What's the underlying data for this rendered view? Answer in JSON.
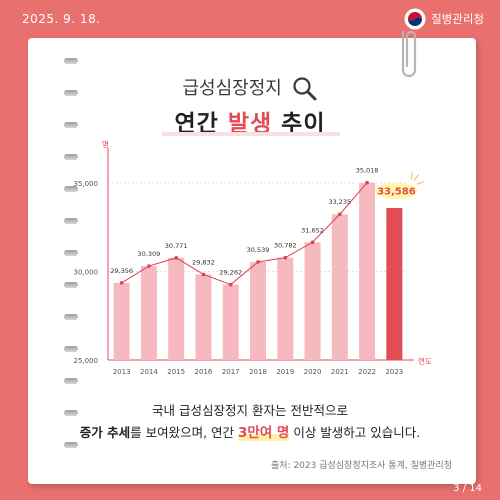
{
  "header": {
    "date": "2025. 9. 18.",
    "agency": "질병관리청",
    "page": "3 / 14"
  },
  "title": {
    "line1": "급성심장정지",
    "line2_part1": "연간 ",
    "line2_highlight": "발생",
    "line2_part2": " 추이"
  },
  "description": {
    "line1": "국내 급성심장정지 환자는 전반적으로",
    "line2_part1": "증가 추세",
    "line2_part2": "를 보여왔으며, 연간 ",
    "line2_emph": "3만여 명",
    "line2_part3": " 이상 발생하고 있습니다."
  },
  "source": "출처: 2023 급성심장정지조사 통계, 질병관리청",
  "colors": {
    "background": "#e8706e",
    "bar": "#f7b9c0",
    "bar_highlight": "#e34b55",
    "line": "#d9434b",
    "emphasis": "#e34b55"
  },
  "chart_data": {
    "type": "bar",
    "categories": [
      "2013",
      "2014",
      "2015",
      "2016",
      "2017",
      "2018",
      "2019",
      "2020",
      "2021",
      "2022",
      "2023"
    ],
    "values": [
      29356,
      30309,
      30771,
      29832,
      29262,
      30539,
      30782,
      31652,
      33235,
      35018,
      33586
    ],
    "value_labels": [
      "29,356",
      "30,309",
      "30,771",
      "29,832",
      "29,262",
      "30,539",
      "30,782",
      "31,652",
      "33,235",
      "35,018",
      "33,586"
    ],
    "overlay_line": true,
    "highlight_index": 10,
    "ylim": [
      25000,
      35000
    ],
    "yticks": [
      25000,
      30000,
      35000
    ],
    "ytick_labels": [
      "25,000",
      "30,000",
      "35,000"
    ],
    "ylabel": "명",
    "xlabel": "연도",
    "grid": true
  }
}
